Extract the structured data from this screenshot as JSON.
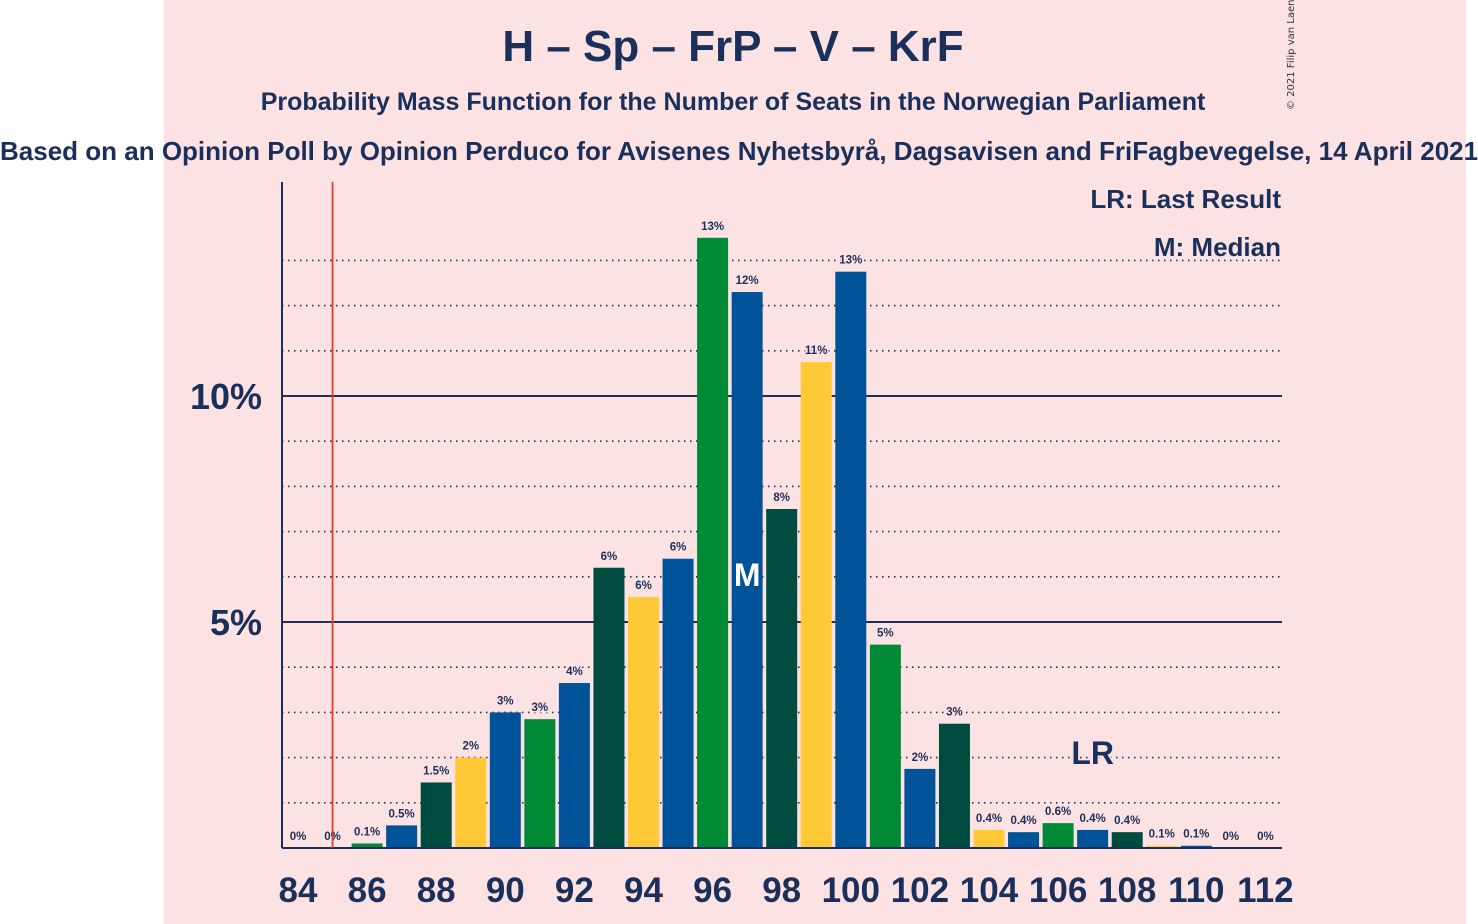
{
  "header": {
    "title": "H – Sp – FrP – V – KrF",
    "subtitle": "Probability Mass Function for the Number of Seats in the Norwegian Parliament",
    "source": "Based on an Opinion Poll by Opinion Perduco for Avisenes Nyhetsbyrå, Dagsavisen and FriFagbevegelse, 14 April 2021",
    "copyright": "© 2021 Filip van Laenen"
  },
  "legend": {
    "last_result": "LR: Last Result",
    "median": "M: Median"
  },
  "chart_data": {
    "type": "bar",
    "x": [
      84,
      85,
      86,
      87,
      88,
      89,
      90,
      91,
      92,
      93,
      94,
      95,
      96,
      97,
      98,
      99,
      100,
      101,
      102,
      103,
      104,
      105,
      106,
      107,
      108,
      109,
      110,
      111,
      112
    ],
    "values": [
      0,
      0,
      0.1,
      0.5,
      1.45,
      2.0,
      3.0,
      2.85,
      3.65,
      6.2,
      5.55,
      6.4,
      13.5,
      12.3,
      7.5,
      10.75,
      12.75,
      4.5,
      1.75,
      2.75,
      0.4,
      0.35,
      0.55,
      0.4,
      0.35,
      0.05,
      0.05,
      0,
      0
    ],
    "labels": [
      "0%",
      "0%",
      "0.1%",
      "0.5%",
      "1.5%",
      "2%",
      "3%",
      "3%",
      "4%",
      "6%",
      "6%",
      "6%",
      "13%",
      "12%",
      "8%",
      "11%",
      "13%",
      "5%",
      "2%",
      "3%",
      "0.4%",
      "0.4%",
      "0.6%",
      "0.4%",
      "0.4%",
      "0.1%",
      "0.1%",
      "0%",
      "0%"
    ],
    "bar_colors": [
      "#005399",
      "#008a36",
      "#008a36",
      "#005399",
      "#004b3f",
      "#ffc935",
      "#005399",
      "#008a36",
      "#005399",
      "#004b3f",
      "#ffc935",
      "#005399",
      "#008a36",
      "#005399",
      "#004b3f",
      "#ffc935",
      "#005399",
      "#008a36",
      "#005399",
      "#004b3f",
      "#ffc935",
      "#005399",
      "#008a36",
      "#005399",
      "#004b3f",
      "#ffc935",
      "#005399",
      "#008a36",
      "#005399"
    ],
    "x_tick_labels": [
      "84",
      "86",
      "88",
      "90",
      "92",
      "94",
      "96",
      "98",
      "100",
      "102",
      "104",
      "106",
      "108",
      "110",
      "112"
    ],
    "y_ticks": [
      {
        "value": 5,
        "label": "5%"
      },
      {
        "value": 10,
        "label": "10%"
      }
    ],
    "ylim": [
      0,
      14.6
    ],
    "minor_gridlines": [
      1,
      2,
      3,
      4,
      6,
      7,
      8,
      9,
      11,
      12,
      13
    ],
    "median": {
      "x": 97,
      "label": "M"
    },
    "last_result": {
      "x": 107,
      "label": "LR"
    },
    "majority_line": {
      "x": 85,
      "color": "#e5392e"
    },
    "axis_color": "#1a2f5a"
  }
}
